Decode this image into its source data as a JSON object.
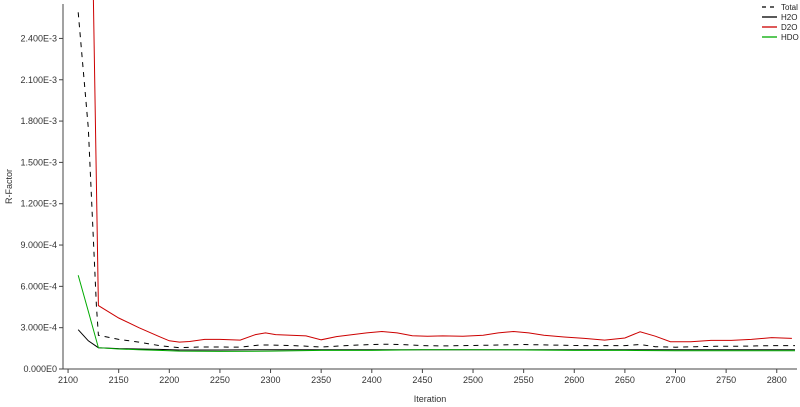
{
  "chart_data": {
    "type": "line",
    "xlabel": "Iteration",
    "ylabel": "R-Factor",
    "xlim": [
      2095,
      2820
    ],
    "ylim": [
      0,
      0.00265
    ],
    "x_ticks": [
      2100,
      2150,
      2200,
      2250,
      2300,
      2350,
      2400,
      2450,
      2500,
      2550,
      2600,
      2650,
      2700,
      2750,
      2800
    ],
    "x_tick_labels": [
      "2100",
      "2150",
      "2200",
      "2250",
      "2300",
      "2350",
      "2400",
      "2450",
      "2500",
      "2550",
      "2600",
      "2650",
      "2700",
      "2750",
      "2800"
    ],
    "y_ticks": [
      0,
      0.0003,
      0.0006,
      0.0009,
      0.0012,
      0.0015,
      0.0018,
      0.0021,
      0.0024
    ],
    "y_tick_labels": [
      "0.000E0",
      "3.000E-4",
      "6.000E-4",
      "9.000E-4",
      "1.200E-3",
      "1.500E-3",
      "1.800E-3",
      "2.100E-3",
      "2.400E-3"
    ],
    "grid": false,
    "legend_position": "top-right",
    "series": [
      {
        "name": "Total",
        "color": "#000000",
        "dash": "dashed",
        "x": [
          2110,
          2120,
          2128,
          2130,
          2150,
          2170,
          2190,
          2210,
          2230,
          2250,
          2270,
          2290,
          2310,
          2330,
          2350,
          2370,
          2390,
          2410,
          2430,
          2450,
          2470,
          2490,
          2510,
          2530,
          2550,
          2570,
          2590,
          2610,
          2630,
          2650,
          2665,
          2680,
          2700,
          2720,
          2740,
          2760,
          2780,
          2800,
          2818
        ],
        "y": [
          0.00259,
          0.00175,
          0.00046,
          0.000245,
          0.000215,
          0.000195,
          0.00017,
          0.000155,
          0.00016,
          0.00016,
          0.000158,
          0.000175,
          0.000172,
          0.000168,
          0.00016,
          0.000168,
          0.000175,
          0.00018,
          0.000178,
          0.00017,
          0.000168,
          0.00017,
          0.000172,
          0.000175,
          0.000178,
          0.000175,
          0.000172,
          0.00017,
          0.00017,
          0.00017,
          0.000178,
          0.000162,
          0.000158,
          0.000162,
          0.000165,
          0.000165,
          0.000168,
          0.00017,
          0.00017
        ]
      },
      {
        "name": "H2O",
        "color": "#000000",
        "dash": "solid",
        "x": [
          2110,
          2120,
          2130,
          2150,
          2170,
          2190,
          2210,
          2250,
          2300,
          2350,
          2400,
          2450,
          2500,
          2550,
          2600,
          2650,
          2700,
          2750,
          2800,
          2818
        ],
        "y": [
          0.000285,
          0.000205,
          0.000155,
          0.000148,
          0.000145,
          0.000142,
          0.000138,
          0.000138,
          0.00014,
          0.00014,
          0.00014,
          0.00014,
          0.00014,
          0.00014,
          0.00014,
          0.00014,
          0.00014,
          0.00014,
          0.00014,
          0.00014
        ]
      },
      {
        "name": "D2O",
        "color": "#cc0000",
        "dash": "solid",
        "x": [
          2125,
          2130,
          2150,
          2170,
          2190,
          2200,
          2210,
          2220,
          2235,
          2250,
          2270,
          2285,
          2295,
          2305,
          2320,
          2335,
          2350,
          2365,
          2380,
          2395,
          2410,
          2425,
          2440,
          2455,
          2470,
          2490,
          2510,
          2525,
          2540,
          2555,
          2570,
          2590,
          2610,
          2630,
          2650,
          2665,
          2680,
          2695,
          2715,
          2735,
          2755,
          2775,
          2795,
          2815
        ],
        "y": [
          0.00268,
          0.00046,
          0.00037,
          0.0003,
          0.000235,
          0.000205,
          0.000195,
          0.0002,
          0.000215,
          0.000215,
          0.00021,
          0.00025,
          0.000262,
          0.00025,
          0.000245,
          0.00024,
          0.000212,
          0.000235,
          0.000248,
          0.000262,
          0.000272,
          0.000262,
          0.000242,
          0.000238,
          0.00024,
          0.000238,
          0.000245,
          0.000262,
          0.000272,
          0.000262,
          0.000245,
          0.000232,
          0.000222,
          0.00021,
          0.000225,
          0.00027,
          0.000238,
          0.000198,
          0.000198,
          0.000208,
          0.000208,
          0.000215,
          0.000228,
          0.000222
        ]
      },
      {
        "name": "HDO",
        "color": "#00aa00",
        "dash": "solid",
        "x": [
          2110,
          2120,
          2130,
          2150,
          2170,
          2190,
          2210,
          2250,
          2300,
          2350,
          2400,
          2450,
          2500,
          2550,
          2600,
          2650,
          2700,
          2750,
          2800,
          2818
        ],
        "y": [
          0.00068,
          0.00042,
          0.000155,
          0.000145,
          0.00014,
          0.000135,
          0.00013,
          0.000128,
          0.00013,
          0.000135,
          0.000135,
          0.00014,
          0.00014,
          0.000138,
          0.000135,
          0.000135,
          0.000132,
          0.000132,
          0.000132,
          0.000132
        ]
      }
    ]
  }
}
